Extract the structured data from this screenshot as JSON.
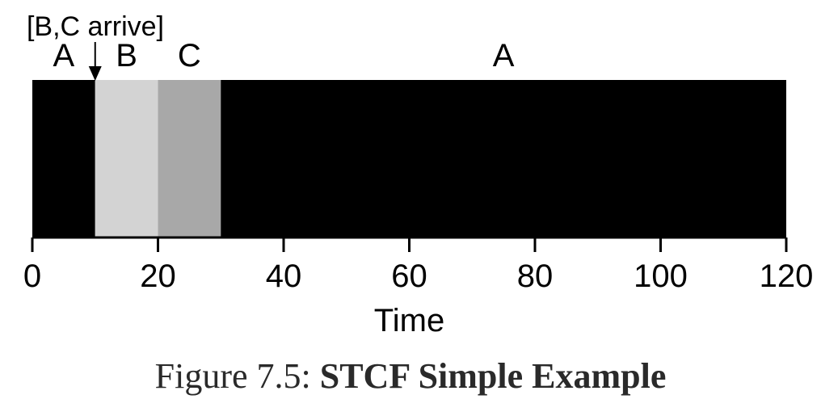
{
  "chart_data": {
    "type": "gantt",
    "xlabel": "Time",
    "xlim": [
      0,
      120
    ],
    "xticks": [
      0,
      20,
      40,
      60,
      80,
      100,
      120
    ],
    "segments": [
      {
        "job": "A",
        "start": 0,
        "end": 10,
        "color": "#000000"
      },
      {
        "job": "B",
        "start": 10,
        "end": 20,
        "color": "#d3d3d3"
      },
      {
        "job": "C",
        "start": 20,
        "end": 30,
        "color": "#a8a8a8"
      },
      {
        "job": "A",
        "start": 30,
        "end": 120,
        "color": "#000000"
      }
    ],
    "annotations": [
      {
        "text": "[B,C arrive]",
        "x": 10
      }
    ]
  },
  "caption": {
    "prefix": "Figure 7.5:",
    "title": "STCF Simple Example"
  }
}
